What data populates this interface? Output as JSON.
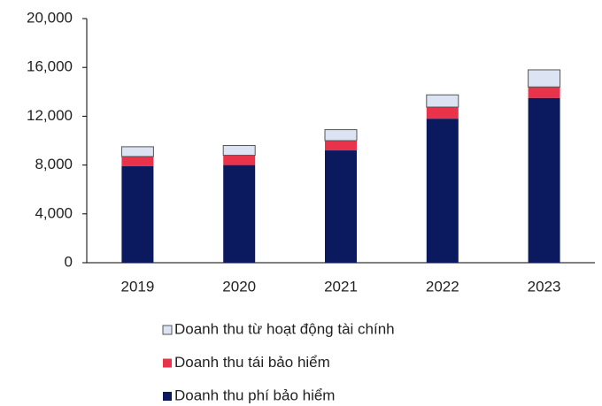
{
  "chart_data": {
    "type": "stacked_bar",
    "categories": [
      "2019",
      "2020",
      "2021",
      "2022",
      "2023"
    ],
    "series": [
      {
        "name": "Doanh thu phí bảo hiểm",
        "color": "#0b1a5e",
        "values": [
          7900,
          8000,
          9200,
          11800,
          13500
        ]
      },
      {
        "name": "Doanh thu tái bảo hiểm",
        "color": "#e8334a",
        "values": [
          800,
          800,
          800,
          950,
          900
        ]
      },
      {
        "name": "Doanh thu từ hoạt động tài chính",
        "color": "#dce3f3",
        "values": [
          800,
          800,
          900,
          1000,
          1400
        ]
      }
    ],
    "ylim": [
      0,
      20000
    ],
    "yticks": [
      0,
      {
        "value": 4000,
        "label": "4,000"
      },
      {
        "value": 8000,
        "label": "8,000"
      },
      {
        "value": 12000,
        "label": "12,000"
      },
      {
        "value": 16000,
        "label": "16,000"
      },
      {
        "value": 20000,
        "label": "20,000"
      }
    ],
    "grid": false
  }
}
